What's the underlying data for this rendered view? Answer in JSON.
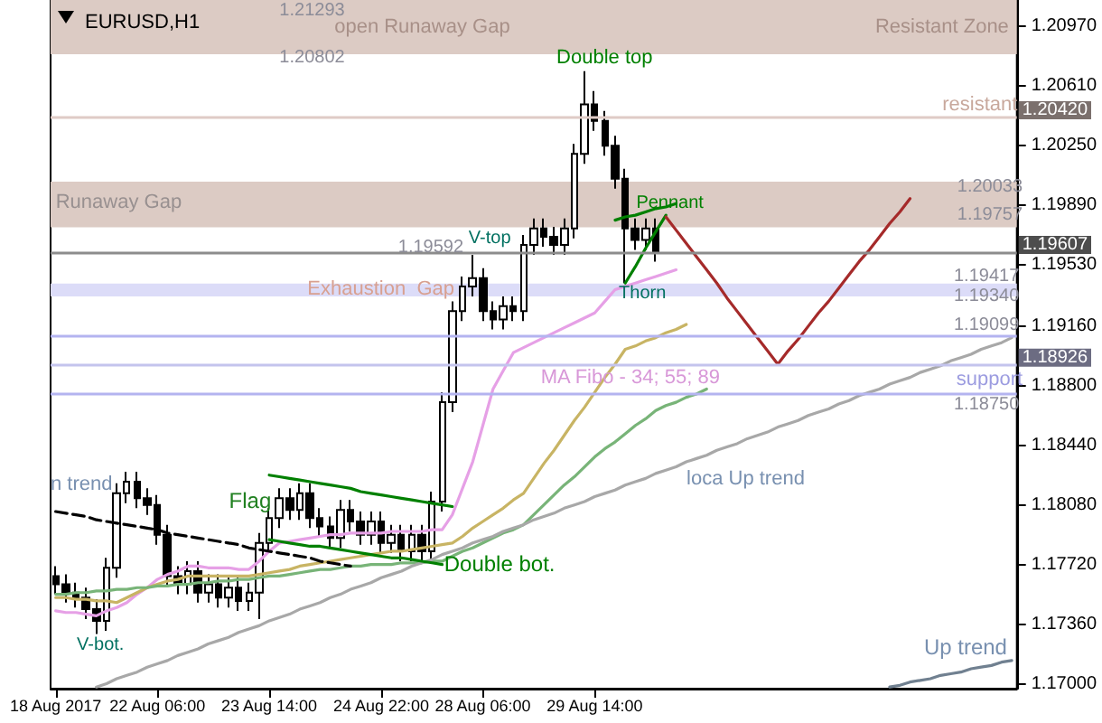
{
  "chart_data": {
    "type": "candlestick",
    "title": "EURUSD,H1",
    "color": "#000000",
    "categories": [
      "18 Aug 2017",
      null,
      null,
      null,
      null,
      null,
      null,
      null,
      null,
      null,
      "22 Aug 06:00",
      null,
      null,
      null,
      null,
      null,
      null,
      null,
      null,
      null,
      null,
      "23 Aug 14:00",
      null,
      null,
      null,
      null,
      null,
      null,
      null,
      null,
      null,
      null,
      "24 Aug 22:00",
      null,
      null,
      null,
      null,
      null,
      null,
      null,
      null,
      null,
      "28 Aug 06:00",
      null,
      null,
      null,
      null,
      null,
      null,
      null,
      null,
      null,
      null,
      "29 Aug 14:00",
      null,
      null,
      null,
      null,
      null,
      null,
      null,
      null,
      null,
      null,
      null,
      null,
      null,
      null,
      null,
      null,
      null,
      null,
      null,
      null,
      null,
      null,
      null,
      null,
      null,
      null,
      null,
      null,
      null,
      null,
      null,
      null,
      null,
      null,
      null,
      null,
      null,
      null,
      null,
      null,
      null
    ],
    "ohlc": [
      [
        1.1765,
        1.1771,
        1.1754,
        1.176
      ],
      [
        1.176,
        1.1766,
        1.1749,
        1.1755
      ],
      [
        1.1755,
        1.1761,
        1.1746,
        1.1752
      ],
      [
        1.1752,
        1.1758,
        1.1739,
        1.1745
      ],
      [
        1.1745,
        1.1751,
        1.173,
        1.1738
      ],
      [
        1.1738,
        1.1776,
        1.1732,
        1.177
      ],
      [
        1.177,
        1.1821,
        1.1764,
        1.1815
      ],
      [
        1.1815,
        1.1828,
        1.1809,
        1.1822
      ],
      [
        1.1822,
        1.1828,
        1.1806,
        1.1812
      ],
      [
        1.1812,
        1.1818,
        1.1802,
        1.1808
      ],
      [
        1.1808,
        1.1814,
        1.1784,
        1.179
      ],
      [
        1.179,
        1.1796,
        1.1759,
        1.1765
      ],
      [
        1.1765,
        1.1771,
        1.1754,
        1.176
      ],
      [
        1.176,
        1.1774,
        1.1754,
        1.1768
      ],
      [
        1.1768,
        1.1774,
        1.1749,
        1.1755
      ],
      [
        1.1755,
        1.1766,
        1.1749,
        1.176
      ],
      [
        1.176,
        1.1766,
        1.1746,
        1.1752
      ],
      [
        1.1752,
        1.1764,
        1.1746,
        1.1758
      ],
      [
        1.1758,
        1.1764,
        1.1744,
        1.175
      ],
      [
        1.175,
        1.1761,
        1.1744,
        1.1755
      ],
      [
        1.1755,
        1.1791,
        1.1739,
        1.1785
      ],
      [
        1.1785,
        1.1806,
        1.1779,
        1.18
      ],
      [
        1.18,
        1.1818,
        1.1794,
        1.1812
      ],
      [
        1.1812,
        1.1818,
        1.1799,
        1.1805
      ],
      [
        1.1805,
        1.1821,
        1.1799,
        1.1815
      ],
      [
        1.1815,
        1.1821,
        1.1794,
        1.18
      ],
      [
        1.18,
        1.1806,
        1.1789,
        1.1795
      ],
      [
        1.1795,
        1.1801,
        1.1782,
        1.1788
      ],
      [
        1.1788,
        1.1811,
        1.1782,
        1.1805
      ],
      [
        1.1805,
        1.1811,
        1.1792,
        1.1798
      ],
      [
        1.1798,
        1.1804,
        1.1784,
        1.179
      ],
      [
        1.179,
        1.1804,
        1.1784,
        1.1798
      ],
      [
        1.1798,
        1.1804,
        1.1779,
        1.1785
      ],
      [
        1.1785,
        1.1796,
        1.1779,
        1.179
      ],
      [
        1.179,
        1.1796,
        1.1774,
        1.178
      ],
      [
        1.178,
        1.1796,
        1.1774,
        1.179
      ],
      [
        1.179,
        1.1796,
        1.1774,
        1.178
      ],
      [
        1.178,
        1.1816,
        1.1774,
        1.181
      ],
      [
        1.181,
        1.1876,
        1.1804,
        1.187
      ],
      [
        1.187,
        1.1931,
        1.1864,
        1.1925
      ],
      [
        1.1925,
        1.1946,
        1.1919,
        1.194
      ],
      [
        1.194,
        1.1959,
        1.1934,
        1.1945
      ],
      [
        1.1945,
        1.1951,
        1.1919,
        1.1925
      ],
      [
        1.1925,
        1.1931,
        1.1914,
        1.192
      ],
      [
        1.192,
        1.1934,
        1.1914,
        1.1928
      ],
      [
        1.1928,
        1.1934,
        1.1919,
        1.1925
      ],
      [
        1.1925,
        1.1971,
        1.1919,
        1.1965
      ],
      [
        1.1965,
        1.1981,
        1.1959,
        1.1975
      ],
      [
        1.1975,
        1.1981,
        1.1964,
        1.197
      ],
      [
        1.197,
        1.1976,
        1.1959,
        1.1965
      ],
      [
        1.1965,
        1.1981,
        1.1959,
        1.1975
      ],
      [
        1.1975,
        1.2026,
        1.1969,
        1.202
      ],
      [
        1.202,
        1.207,
        1.2014,
        1.205
      ],
      [
        1.205,
        1.2058,
        1.2034,
        1.204
      ],
      [
        1.204,
        1.2046,
        1.2019,
        1.2025
      ],
      [
        1.2025,
        1.2031,
        1.1999,
        1.2005
      ],
      [
        1.2005,
        1.2011,
        1.1942,
        1.1975
      ],
      [
        1.1975,
        1.1981,
        1.1962,
        1.1968
      ],
      [
        1.1968,
        1.1981,
        1.1962,
        1.1975
      ],
      [
        1.1975,
        1.1981,
        1.1955,
        1.19607
      ],
      null,
      null,
      null,
      null,
      null,
      null,
      null,
      null,
      null,
      null,
      null,
      null,
      null,
      null,
      null,
      null,
      null,
      null,
      null,
      null,
      null,
      null,
      null,
      null,
      null,
      null,
      null,
      null,
      null,
      null,
      null,
      null,
      null,
      null,
      null
    ],
    "ylim": [
      1.1697,
      1.2113
    ],
    "yticks": [
      {
        "value": 1.2097,
        "label": "1.20970"
      },
      {
        "value": 1.2061,
        "label": "1.20610"
      },
      {
        "value": 1.2025,
        "label": "1.20250"
      },
      {
        "value": 1.1989,
        "label": "1.19890"
      },
      {
        "value": 1.1953,
        "label": "1.19530"
      },
      {
        "value": 1.1916,
        "label": "1.19160"
      },
      {
        "value": 1.188,
        "label": "1.18800"
      },
      {
        "value": 1.1844,
        "label": "1.18440"
      },
      {
        "value": 1.1808,
        "label": "1.18080"
      },
      {
        "value": 1.1772,
        "label": "1.17720"
      },
      {
        "value": 1.1736,
        "label": "1.17360"
      },
      {
        "value": 1.17,
        "label": "1.17000"
      }
    ],
    "series": [
      {
        "type": "line",
        "color": "#e6a0e6",
        "values": [
          1.1744,
          1.1743,
          1.1743,
          1.1742,
          1.1741,
          1.1744,
          1.1746,
          1.1749,
          1.1754,
          1.1758,
          1.1763,
          1.1766,
          1.1768,
          1.1771,
          1.1771,
          1.177,
          1.177,
          1.177,
          1.1769,
          1.1769,
          1.1774,
          1.178,
          1.1785,
          1.1786,
          1.1787,
          1.1788,
          1.1789,
          1.179,
          1.179,
          1.1791,
          1.1791,
          1.1791,
          1.1791,
          1.1792,
          1.1792,
          1.1792,
          1.1792,
          1.1793,
          1.1793,
          1.1802,
          1.1818,
          1.1834,
          1.1856,
          1.1878,
          1.1889,
          1.19,
          1.1903,
          1.1906,
          1.1909,
          1.1912,
          1.1915,
          1.1918,
          1.1921,
          1.1924,
          1.1931,
          1.1938,
          1.194,
          1.1942,
          1.1944,
          1.1946,
          1.1948,
          1.195,
          null,
          null,
          null,
          null,
          null,
          null,
          null,
          null,
          null,
          null,
          null,
          null,
          null,
          null,
          null,
          null,
          null,
          null,
          null,
          null,
          null,
          null,
          null,
          null,
          null,
          null,
          null,
          null,
          null,
          null,
          null,
          null,
          null
        ]
      },
      {
        "type": "line",
        "color": "#c8b464",
        "values": [
          1.1752,
          1.1752,
          1.1751,
          1.1751,
          1.175,
          1.175,
          1.1749,
          1.1752,
          1.1755,
          1.1758,
          1.176,
          1.1762,
          1.1763,
          1.1765,
          1.1765,
          1.1765,
          1.1765,
          1.1765,
          1.1765,
          1.1765,
          1.1766,
          1.1767,
          1.1768,
          1.1769,
          1.1771,
          1.1772,
          1.1773,
          1.1774,
          1.1775,
          1.1776,
          1.1777,
          1.1778,
          1.1779,
          1.178,
          1.178,
          1.1781,
          1.1782,
          1.1783,
          1.1784,
          1.1785,
          1.1789,
          1.1794,
          1.1798,
          1.1802,
          1.1806,
          1.1811,
          1.1815,
          1.1824,
          1.1833,
          1.1841,
          1.185,
          1.1859,
          1.1867,
          1.1876,
          1.1885,
          1.1893,
          1.1902,
          1.1904,
          1.1907,
          1.1909,
          1.1912,
          1.1914,
          1.1917,
          null,
          null,
          null,
          null,
          null,
          null,
          null,
          null,
          null,
          null,
          null,
          null,
          null,
          null,
          null,
          null,
          null,
          null,
          null,
          null,
          null,
          null,
          null,
          null,
          null,
          null,
          null,
          null,
          null,
          null,
          null,
          null
        ]
      },
      {
        "type": "line",
        "color": "#78b478",
        "values": [
          1.1754,
          1.1754,
          1.1755,
          1.1755,
          1.1756,
          1.1756,
          1.1757,
          1.1757,
          1.1758,
          1.1758,
          1.1759,
          1.1759,
          1.176,
          1.176,
          1.1761,
          1.1761,
          1.1762,
          1.1762,
          1.1763,
          1.1763,
          1.1764,
          1.1765,
          1.1765,
          1.1766,
          1.1767,
          1.1768,
          1.1769,
          1.1769,
          1.177,
          1.1771,
          1.1771,
          1.1772,
          1.1772,
          1.1772,
          1.1773,
          1.1773,
          1.1773,
          1.1774,
          1.1774,
          1.1777,
          1.178,
          1.1782,
          1.1785,
          1.1788,
          1.1791,
          1.1793,
          1.1796,
          1.1802,
          1.1808,
          1.1814,
          1.182,
          1.1825,
          1.1831,
          1.1837,
          1.1842,
          1.1846,
          1.1851,
          1.1856,
          1.186,
          1.1865,
          1.1868,
          1.187,
          1.1873,
          1.1875,
          1.1878,
          null,
          null,
          null,
          null,
          null,
          null,
          null,
          null,
          null,
          null,
          null,
          null,
          null,
          null,
          null,
          null,
          null,
          null,
          null,
          null,
          null,
          null,
          null,
          null,
          null,
          null,
          null,
          null,
          null,
          null
        ]
      },
      {
        "type": "line",
        "color": "#a8a8a8",
        "values": [
          null,
          null,
          null,
          null,
          1.1698,
          1.17,
          1.1703,
          1.1705,
          1.1707,
          1.171,
          1.1712,
          1.1714,
          1.1717,
          1.1719,
          1.1721,
          1.1724,
          1.1726,
          1.1728,
          1.1731,
          1.1733,
          1.1735,
          1.1738,
          1.174,
          1.1742,
          1.1745,
          1.1747,
          1.1749,
          1.1752,
          1.1754,
          1.1757,
          1.1759,
          1.1761,
          1.1764,
          1.1766,
          1.1768,
          1.1771,
          1.1773,
          1.1775,
          1.1778,
          1.178,
          1.1782,
          1.1785,
          1.1787,
          1.1789,
          1.1792,
          1.1794,
          1.1796,
          1.1799,
          1.1801,
          1.1803,
          1.1806,
          1.1808,
          1.181,
          1.1813,
          1.1815,
          1.1817,
          1.182,
          1.1822,
          1.1824,
          1.1827,
          1.1829,
          1.1831,
          1.1834,
          1.1836,
          1.1838,
          1.1841,
          1.1843,
          1.1845,
          1.1848,
          1.185,
          1.1852,
          1.1855,
          1.1857,
          1.1859,
          1.1862,
          1.1864,
          1.1866,
          1.1869,
          1.1871,
          1.1874,
          1.1876,
          1.1878,
          1.1881,
          1.1883,
          1.1885,
          1.1888,
          1.189,
          1.1892,
          1.1895,
          1.1897,
          1.1899,
          1.1902,
          1.1904,
          1.1906,
          1.1909
        ]
      },
      {
        "type": "line",
        "color": "#708090",
        "values": [
          null,
          null,
          null,
          null,
          null,
          null,
          null,
          null,
          null,
          null,
          null,
          null,
          null,
          null,
          null,
          null,
          null,
          null,
          null,
          null,
          null,
          null,
          null,
          null,
          null,
          null,
          null,
          null,
          null,
          null,
          null,
          null,
          null,
          null,
          null,
          null,
          null,
          null,
          null,
          null,
          null,
          null,
          null,
          null,
          null,
          null,
          null,
          null,
          null,
          null,
          null,
          null,
          null,
          null,
          null,
          null,
          null,
          null,
          null,
          null,
          null,
          null,
          null,
          null,
          null,
          null,
          null,
          null,
          null,
          null,
          null,
          null,
          null,
          null,
          null,
          null,
          null,
          null,
          null,
          null,
          null,
          null,
          1.1698,
          1.1699,
          1.1701,
          1.1702,
          1.1703,
          1.1705,
          1.1706,
          1.1707,
          1.1709,
          1.171,
          1.1711,
          1.1713,
          1.1714
        ]
      },
      {
        "type": "line",
        "color": "#000000",
        "line_style": "dashed",
        "values": [
          1.1804,
          1.1803,
          1.1802,
          1.1801,
          1.1799,
          1.1798,
          1.1797,
          1.1796,
          1.1795,
          1.1794,
          1.1793,
          1.1791,
          1.179,
          1.1789,
          1.1788,
          1.1787,
          1.1786,
          1.1785,
          1.1784,
          1.1782,
          1.1781,
          1.178,
          1.1779,
          1.1778,
          1.1777,
          1.1776,
          1.1774,
          1.1773,
          1.1772,
          1.1771,
          null,
          null,
          null,
          null,
          null,
          null,
          null,
          null,
          null,
          null,
          null,
          null,
          null,
          null,
          null,
          null,
          null,
          null,
          null,
          null,
          null,
          null,
          null,
          null,
          null,
          null,
          null,
          null,
          null,
          null,
          null,
          null,
          null,
          null,
          null,
          null,
          null,
          null,
          null,
          null,
          null,
          null,
          null,
          null,
          null,
          null,
          null,
          null,
          null,
          null,
          null,
          null,
          null,
          null,
          null,
          null,
          null,
          null,
          null,
          null,
          null,
          null,
          null,
          null,
          null
        ]
      },
      {
        "type": "line",
        "color": "#008000",
        "values": [
          null,
          null,
          null,
          null,
          null,
          null,
          null,
          null,
          null,
          null,
          null,
          null,
          null,
          null,
          null,
          null,
          null,
          null,
          null,
          null,
          null,
          1.1826,
          1.1825,
          1.1824,
          1.1823,
          1.1822,
          1.1821,
          1.182,
          1.1819,
          1.1818,
          1.1816,
          1.1815,
          1.1814,
          1.1813,
          1.1812,
          1.1811,
          1.181,
          1.1809,
          1.1808,
          1.1807,
          null,
          null,
          null,
          null,
          null,
          null,
          null,
          null,
          null,
          null,
          null,
          null,
          null,
          null,
          null,
          null,
          null,
          null,
          null,
          null,
          null,
          null,
          null,
          null,
          null,
          null,
          null,
          null,
          null,
          null,
          null,
          null,
          null,
          null,
          null,
          null,
          null,
          null,
          null,
          null,
          null,
          null,
          null,
          null,
          null,
          null,
          null,
          null,
          null,
          null,
          null,
          null,
          null,
          null,
          null
        ]
      },
      {
        "type": "line",
        "color": "#008000",
        "values": [
          null,
          null,
          null,
          null,
          null,
          null,
          null,
          null,
          null,
          null,
          null,
          null,
          null,
          null,
          null,
          null,
          null,
          null,
          null,
          null,
          null,
          1.1787,
          1.1786,
          1.1785,
          1.1784,
          1.1783,
          1.1783,
          1.1782,
          1.1781,
          1.178,
          1.1779,
          1.1778,
          1.1777,
          1.1776,
          1.1776,
          1.1775,
          1.1774,
          1.1773,
          1.1772,
          null,
          null,
          null,
          null,
          null,
          null,
          null,
          null,
          null,
          null,
          null,
          null,
          null,
          null,
          null,
          null,
          null,
          null,
          null,
          null,
          null,
          null,
          null,
          null,
          null,
          null,
          null,
          null,
          null,
          null,
          null,
          null,
          null,
          null,
          null,
          null,
          null,
          null,
          null,
          null,
          null,
          null,
          null,
          null,
          null,
          null,
          null,
          null,
          null,
          null,
          null,
          null,
          null,
          null,
          null,
          null
        ]
      },
      {
        "type": "line",
        "color": "#008000",
        "values": [
          null,
          null,
          null,
          null,
          null,
          null,
          null,
          null,
          null,
          null,
          null,
          null,
          null,
          null,
          null,
          null,
          null,
          null,
          null,
          null,
          null,
          null,
          null,
          null,
          null,
          null,
          null,
          null,
          null,
          null,
          null,
          null,
          null,
          null,
          null,
          null,
          null,
          null,
          null,
          null,
          null,
          null,
          null,
          null,
          null,
          null,
          null,
          null,
          null,
          null,
          null,
          null,
          null,
          null,
          null,
          1.198,
          1.1982,
          1.1983,
          1.1985,
          1.1987,
          1.1988,
          1.199,
          null,
          null,
          null,
          null,
          null,
          null,
          null,
          null,
          null,
          null,
          null,
          null,
          null,
          null,
          null,
          null,
          null,
          null,
          null,
          null,
          null,
          null,
          null,
          null,
          null,
          null,
          null,
          null,
          null,
          null,
          null,
          null,
          null
        ]
      },
      {
        "type": "line",
        "color": "#008000",
        "values": [
          null,
          null,
          null,
          null,
          null,
          null,
          null,
          null,
          null,
          null,
          null,
          null,
          null,
          null,
          null,
          null,
          null,
          null,
          null,
          null,
          null,
          null,
          null,
          null,
          null,
          null,
          null,
          null,
          null,
          null,
          null,
          null,
          null,
          null,
          null,
          null,
          null,
          null,
          null,
          null,
          null,
          null,
          null,
          null,
          null,
          null,
          null,
          null,
          null,
          null,
          null,
          null,
          null,
          null,
          null,
          null,
          1.1942,
          1.1952,
          1.1963,
          1.1973,
          1.1983,
          null,
          null,
          null,
          null,
          null,
          null,
          null,
          null,
          null,
          null,
          null,
          null,
          null,
          null,
          null,
          null,
          null,
          null,
          null,
          null,
          null,
          null,
          null,
          null,
          null,
          null,
          null,
          null,
          null,
          null,
          null,
          null,
          null,
          null
        ]
      },
      {
        "type": "line",
        "color": "#a52a2a",
        "values": [
          null,
          null,
          null,
          null,
          null,
          null,
          null,
          null,
          null,
          null,
          null,
          null,
          null,
          null,
          null,
          null,
          null,
          null,
          null,
          null,
          null,
          null,
          null,
          null,
          null,
          null,
          null,
          null,
          null,
          null,
          null,
          null,
          null,
          null,
          null,
          null,
          null,
          null,
          null,
          null,
          null,
          null,
          null,
          null,
          null,
          null,
          null,
          null,
          null,
          null,
          null,
          null,
          null,
          null,
          null,
          null,
          null,
          null,
          null,
          null,
          1.1982,
          1.1974,
          1.1966,
          1.1958,
          1.195,
          1.1942,
          1.1933,
          1.1925,
          1.1917,
          1.1909,
          1.1901,
          1.1893,
          1.1901,
          1.1908,
          1.1916,
          1.1924,
          1.1931,
          1.1939,
          1.1947,
          1.1955,
          1.1962,
          1.197,
          1.1978,
          1.1985,
          1.1993,
          null,
          null,
          null,
          null,
          null,
          null,
          null,
          null,
          null,
          null
        ]
      }
    ],
    "bands": [
      {
        "axis": "y",
        "from": 1.20802,
        "to": 1.2113,
        "color": "#dccbc4"
      },
      {
        "axis": "y",
        "from": 1.19757,
        "to": 1.20033,
        "color": "#dccbc4"
      },
      {
        "axis": "y",
        "from": 1.1934,
        "to": 1.19417,
        "color": "#dcdcf8"
      }
    ],
    "ref_lines": [
      {
        "axis": "y",
        "value": 1.2042,
        "label": "1.20420",
        "color": "#dfcbc6"
      },
      {
        "axis": "y",
        "value": 1.19607,
        "label": "1.19607",
        "color": "#8c8c8c"
      },
      {
        "axis": "y",
        "value": 1.19099,
        "color": "#b4b4f0"
      },
      {
        "axis": "y",
        "value": 1.18926,
        "label": "1.18926",
        "color": "#c4c4ed"
      },
      {
        "axis": "y",
        "value": 1.1875,
        "color": "#b4b4f0"
      }
    ],
    "annotations": [
      "Resistant Zone",
      "open Runaway Gap",
      "1.21293",
      "1.20802",
      "Double top",
      "resistant",
      "Runaway Gap",
      {
        "text": "1.20033",
        "y": 1.20033
      },
      "1.19757",
      {
        "text": "Pennant",
        "y": 1.199
      },
      "V-top",
      "1.19592",
      "Exhaustion  Gap",
      {
        "text": "Thorn",
        "y": 1.1942
      },
      "1.19417",
      "1.19340",
      "1.19099",
      "MA Fibo - 34; 55; 89",
      "support",
      "1.18750",
      "loca Up trend",
      "n trend",
      "Flag",
      "Double bot.",
      "V-bot.",
      "Up trend"
    ]
  }
}
